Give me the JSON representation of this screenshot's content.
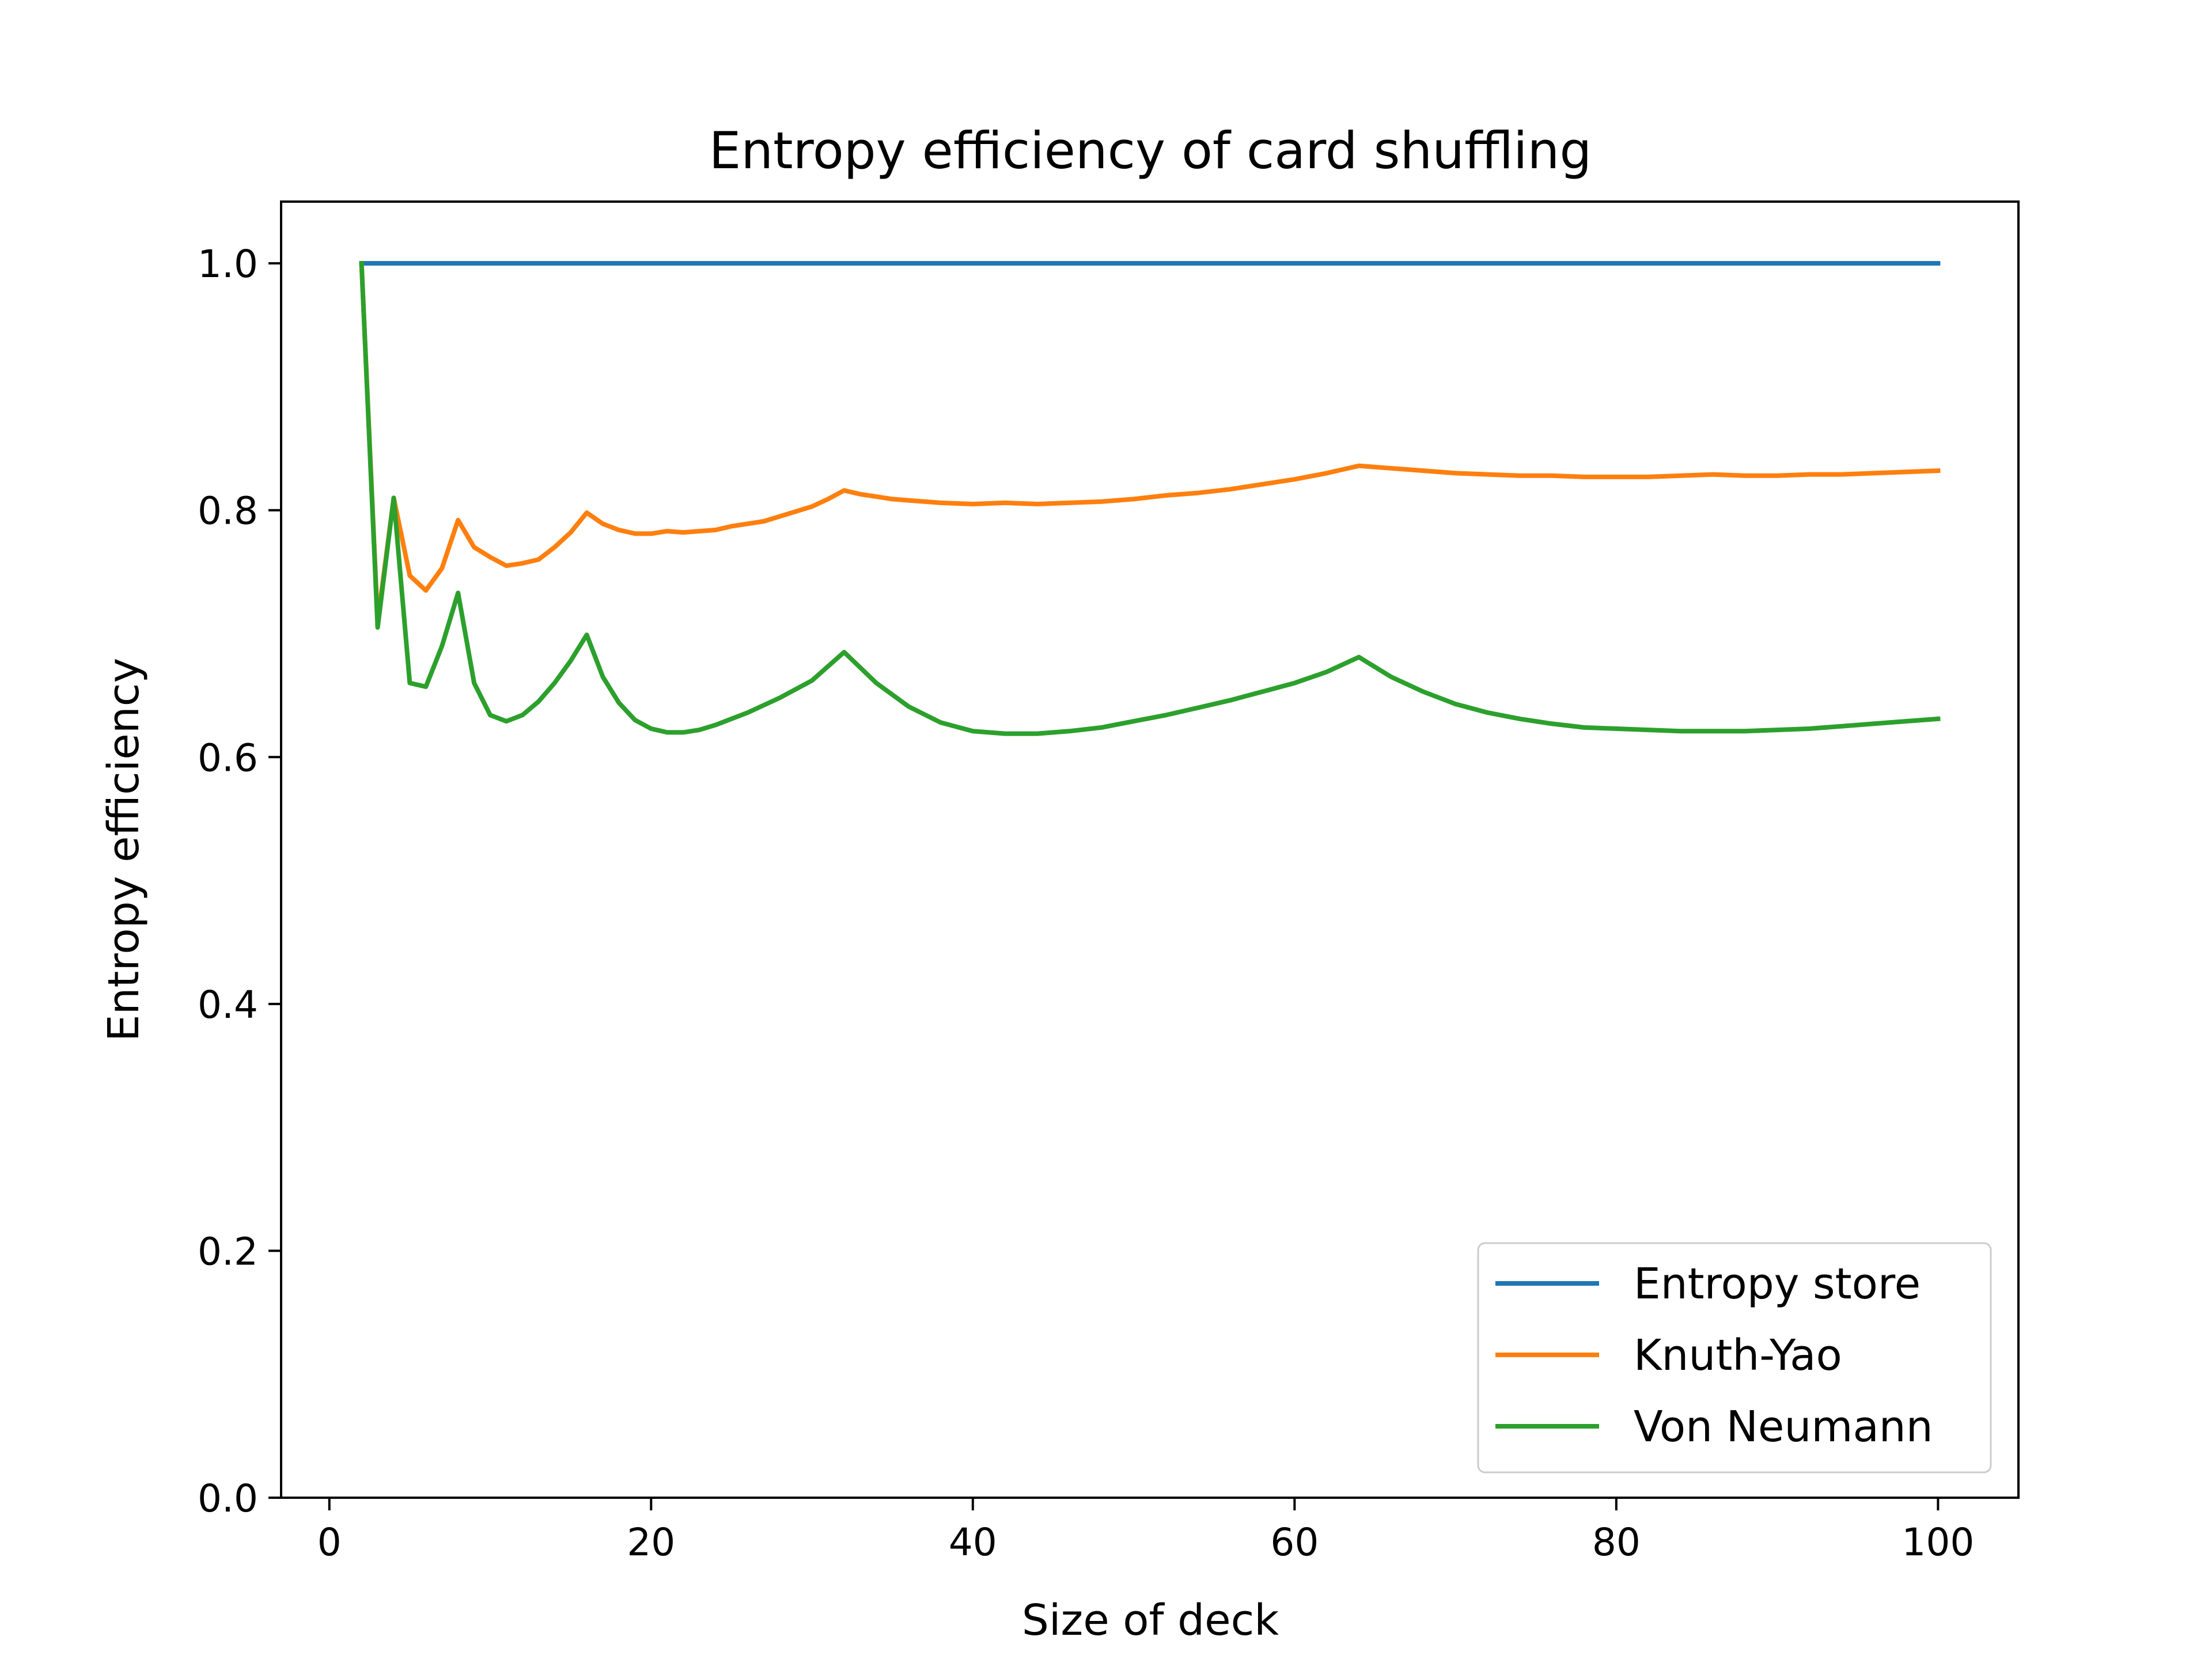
{
  "chart_data": {
    "type": "line",
    "title": "Entropy efficiency of card shuffling",
    "xlabel": "Size of deck",
    "ylabel": "Entropy efficiency",
    "xlim": [
      -3,
      105
    ],
    "ylim": [
      0,
      1.05
    ],
    "xticks": [
      0,
      20,
      40,
      60,
      80,
      100
    ],
    "yticks": [
      0.0,
      0.2,
      0.4,
      0.6,
      0.8,
      1.0
    ],
    "xtick_labels": [
      "0",
      "20",
      "40",
      "60",
      "80",
      "100"
    ],
    "ytick_labels": [
      "0.0",
      "0.2",
      "0.4",
      "0.6",
      "0.8",
      "1.0"
    ],
    "grid": false,
    "legend_position": "lower-right",
    "series": [
      {
        "name": "Entropy store",
        "color": "#1f77b4",
        "x": [
          2,
          100
        ],
        "y": [
          1.0,
          1.0
        ]
      },
      {
        "name": "Knuth-Yao",
        "color": "#ff7f0e",
        "x": [
          2,
          3,
          4,
          5,
          6,
          7,
          8,
          9,
          10,
          11,
          12,
          13,
          14,
          15,
          16,
          17,
          18,
          19,
          20,
          21,
          22,
          23,
          24,
          25,
          26,
          27,
          28,
          29,
          30,
          31,
          32,
          33,
          34,
          35,
          36,
          38,
          40,
          42,
          44,
          46,
          48,
          50,
          52,
          54,
          56,
          58,
          60,
          62,
          64,
          66,
          68,
          70,
          72,
          74,
          76,
          78,
          80,
          82,
          84,
          86,
          88,
          90,
          92,
          94,
          96,
          98,
          100
        ],
        "y": [
          1.0,
          0.71,
          0.81,
          0.747,
          0.735,
          0.753,
          0.792,
          0.77,
          0.762,
          0.755,
          0.757,
          0.76,
          0.77,
          0.782,
          0.798,
          0.789,
          0.784,
          0.781,
          0.781,
          0.783,
          0.782,
          0.783,
          0.784,
          0.787,
          0.789,
          0.791,
          0.795,
          0.799,
          0.803,
          0.809,
          0.816,
          0.813,
          0.811,
          0.809,
          0.808,
          0.806,
          0.805,
          0.806,
          0.805,
          0.806,
          0.807,
          0.809,
          0.812,
          0.814,
          0.817,
          0.821,
          0.825,
          0.83,
          0.836,
          0.834,
          0.832,
          0.83,
          0.829,
          0.828,
          0.828,
          0.827,
          0.827,
          0.827,
          0.828,
          0.829,
          0.828,
          0.828,
          0.829,
          0.829,
          0.83,
          0.831,
          0.832
        ]
      },
      {
        "name": "Von Neumann",
        "color": "#2ca02c",
        "x": [
          2,
          3,
          4,
          5,
          6,
          7,
          8,
          9,
          10,
          11,
          12,
          13,
          14,
          15,
          16,
          17,
          18,
          19,
          20,
          21,
          22,
          23,
          24,
          26,
          28,
          30,
          32,
          34,
          36,
          38,
          40,
          42,
          44,
          46,
          48,
          50,
          52,
          54,
          56,
          58,
          60,
          62,
          64,
          66,
          68,
          70,
          72,
          74,
          76,
          78,
          80,
          82,
          84,
          86,
          88,
          90,
          92,
          94,
          96,
          98,
          100
        ],
        "y": [
          1.0,
          0.705,
          0.81,
          0.66,
          0.657,
          0.69,
          0.733,
          0.66,
          0.634,
          0.629,
          0.634,
          0.645,
          0.66,
          0.678,
          0.699,
          0.665,
          0.644,
          0.63,
          0.623,
          0.62,
          0.62,
          0.622,
          0.626,
          0.636,
          0.648,
          0.662,
          0.685,
          0.66,
          0.641,
          0.628,
          0.621,
          0.619,
          0.619,
          0.621,
          0.624,
          0.629,
          0.634,
          0.64,
          0.646,
          0.653,
          0.66,
          0.669,
          0.681,
          0.665,
          0.653,
          0.643,
          0.636,
          0.631,
          0.627,
          0.624,
          0.623,
          0.622,
          0.621,
          0.621,
          0.621,
          0.622,
          0.623,
          0.625,
          0.627,
          0.629,
          0.631
        ]
      }
    ]
  }
}
